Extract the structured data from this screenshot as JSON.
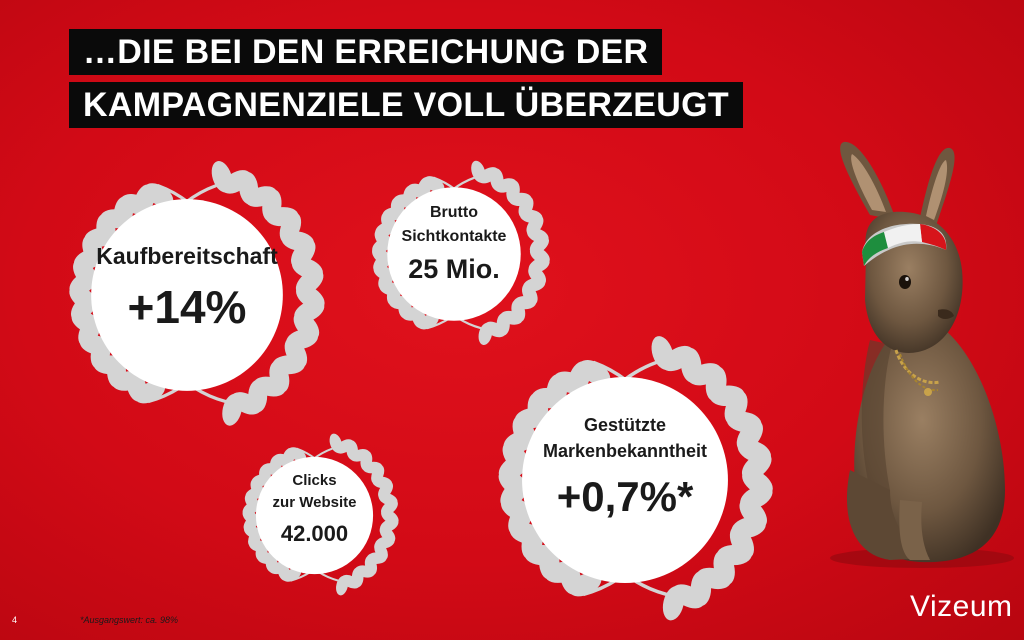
{
  "title": {
    "line1": "…DIE BEI DEN ERREICHUNG DER",
    "line2": "KAMPAGNENZIELE VOLL ÜBERZEUGT"
  },
  "awards": {
    "kaufbereitschaft": {
      "label": "Kaufbereitschaft",
      "value": "+14%"
    },
    "sichtkontakte": {
      "label1": "Brutto",
      "label2": "Sichtkontakte",
      "value": "25 Mio."
    },
    "clicks": {
      "label1": "Clicks",
      "label2": "zur Website",
      "value": "42.000"
    },
    "markenbekanntheit": {
      "label1": "Gestützte",
      "label2": "Markenbekanntheit",
      "value": "+0,7%*"
    }
  },
  "footer": {
    "page_number": "4",
    "footnote": "*Ausgangswert: ca. 98%",
    "logo": "Vizeum"
  },
  "colors": {
    "background": "#d20a16",
    "title_bg": "#0a0a0a",
    "wreath": "#d4d4d4",
    "circle": "#ffffff"
  }
}
